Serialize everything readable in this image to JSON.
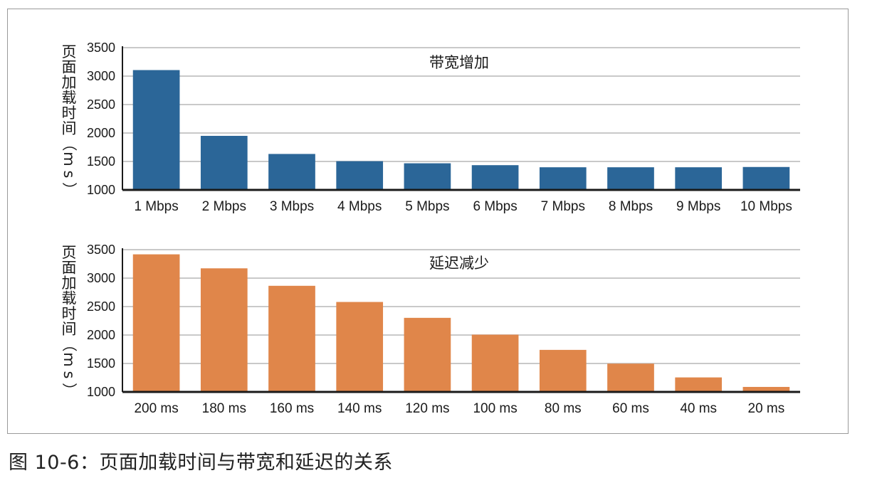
{
  "caption": "图 10-6：页面加载时间与带宽和延迟的关系",
  "chart_data": [
    {
      "type": "bar",
      "title": "带宽增加",
      "ylabel": "页面加载时间（ms）",
      "ylabel_chars": [
        "页",
        "面",
        "加",
        "载",
        "时",
        "间",
        "（",
        "m",
        "s",
        "）"
      ],
      "ylim": [
        1000,
        3500
      ],
      "yticks": [
        1000,
        1500,
        2000,
        2500,
        3000,
        3500
      ],
      "grid": true,
      "color": "#2b6698",
      "categories": [
        "1 Mbps",
        "2 Mbps",
        "3 Mbps",
        "4 Mbps",
        "5 Mbps",
        "6 Mbps",
        "7 Mbps",
        "8 Mbps",
        "9 Mbps",
        "10 Mbps"
      ],
      "values": [
        3106,
        1950,
        1632,
        1505,
        1468,
        1435,
        1398,
        1398,
        1398,
        1403
      ]
    },
    {
      "type": "bar",
      "title": "延迟减少",
      "ylabel": "页面加载时间（ms）",
      "ylabel_chars": [
        "页",
        "面",
        "加",
        "载",
        "时",
        "间",
        "（",
        "m",
        "s",
        "）"
      ],
      "ylim": [
        1000,
        3500
      ],
      "yticks": [
        1000,
        1500,
        2000,
        2500,
        3000,
        3500
      ],
      "grid": true,
      "color": "#e0864a",
      "categories": [
        "200 ms",
        "180 ms",
        "160 ms",
        "140 ms",
        "120 ms",
        "100 ms",
        "80 ms",
        "60 ms",
        "40 ms",
        "20 ms"
      ],
      "values": [
        3418,
        3172,
        2865,
        2581,
        2302,
        2006,
        1739,
        1497,
        1255,
        1088
      ]
    }
  ]
}
